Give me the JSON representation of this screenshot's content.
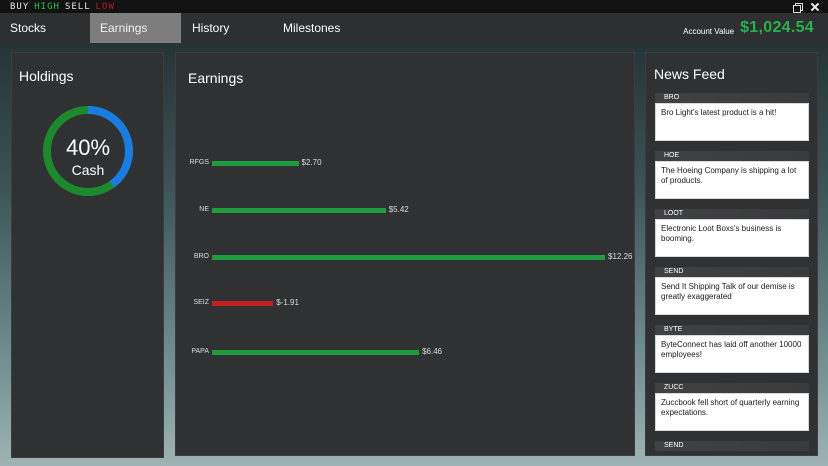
{
  "titlebar": {
    "logo": [
      "BUY",
      "HIGH",
      "SELL",
      "LOW"
    ]
  },
  "nav": {
    "tabs": [
      {
        "label": "Stocks",
        "active": false
      },
      {
        "label": "Earnings",
        "active": true
      },
      {
        "label": "History",
        "active": false
      },
      {
        "label": "Milestones",
        "active": false
      }
    ],
    "account_label": "Account Value",
    "account_value": "$1,024.54"
  },
  "holdings": {
    "title": "Holdings",
    "cash_percent_label": "40%",
    "cash_label": "Cash",
    "cash_fraction": 0.4,
    "colors": {
      "cash": "#1a7be0",
      "stocks": "#1c8a2c"
    }
  },
  "earnings": {
    "title": "Earnings",
    "colors": {
      "positive": "#1f9a3c",
      "negative": "#c41f1f"
    }
  },
  "chart_data": {
    "type": "bar",
    "orientation": "horizontal",
    "categories": [
      "RFGS",
      "NE",
      "BRO",
      "SEIZ",
      "PAPA"
    ],
    "values": [
      2.7,
      5.42,
      12.26,
      -1.91,
      6.46
    ],
    "value_labels": [
      "$2.70",
      "$5.42",
      "$12.26",
      "$-1.91",
      "$6.46"
    ],
    "title": "Earnings"
  },
  "news": {
    "title": "News Feed",
    "items": [
      {
        "ticker": "BRO",
        "text": "Bro Light's latest product is a hit!"
      },
      {
        "ticker": "HOE",
        "text": "The Hoeing Company is shipping a lot of products."
      },
      {
        "ticker": "LOOT",
        "text": "Electronic Loot Boxs's business is booming."
      },
      {
        "ticker": "SEND",
        "text": "Send It Shipping Talk of our demise is greatly exaggerated"
      },
      {
        "ticker": "BYTE",
        "text": "ByteConnect has laid off another 10000 employees!"
      },
      {
        "ticker": "ZUCC",
        "text": "Zuccbook fell short of quarterly earning expectations."
      },
      {
        "ticker": "SEND",
        "text": ""
      }
    ]
  }
}
